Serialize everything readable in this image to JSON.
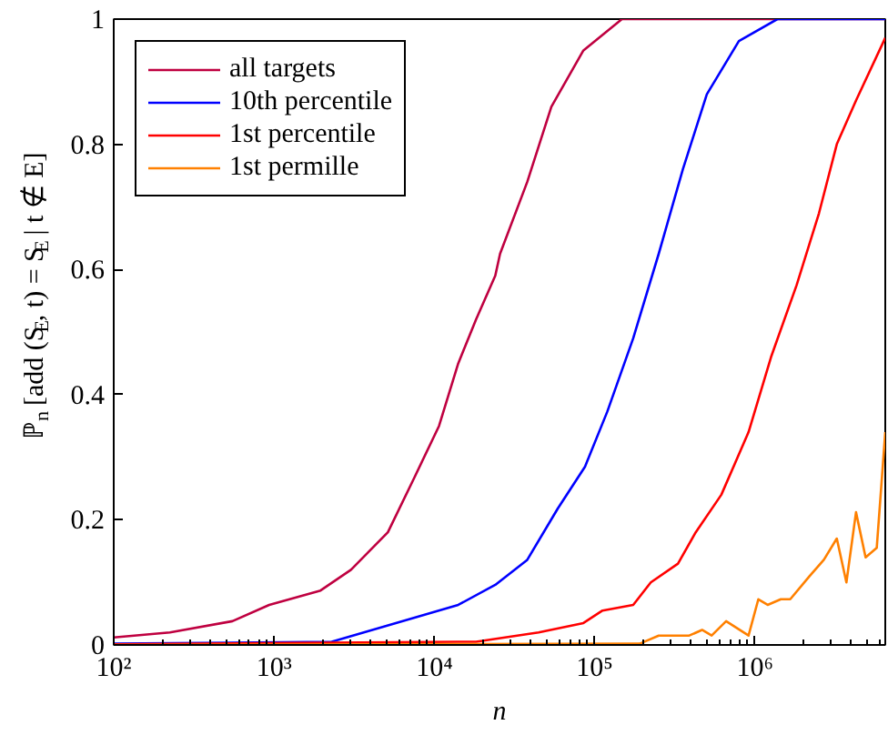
{
  "chart_data": {
    "type": "line",
    "xlabel": "n",
    "ylabel": "ℙ$_{n}$ [add (S$_{E}$, t) = S$_{E}$ | t ∉ E]",
    "log": "x",
    "xlim": [
      100,
      6500000
    ],
    "ylim": [
      0,
      1
    ],
    "xticks": [
      {
        "value": 100,
        "label": "10²"
      },
      {
        "value": 1000,
        "label": "10³"
      },
      {
        "value": 10000,
        "label": "10⁴"
      },
      {
        "value": 100000,
        "label": "10⁵"
      },
      {
        "value": 1000000,
        "label": "10⁶"
      }
    ],
    "yticks": [
      0,
      0.2,
      0.4,
      0.6,
      0.8,
      1
    ],
    "grid": false,
    "legend": "top left",
    "series": [
      {
        "name": "all targets",
        "color": "#bf0040",
        "x": [
          100,
          224,
          550,
          933,
          1950,
          3020,
          5130,
          7590,
          10700,
          14100,
          18200,
          24000,
          25700,
          38000,
          53700,
          85100,
          148000,
          6500000
        ],
        "values": [
          0.012,
          0.02,
          0.038,
          0.064,
          0.087,
          0.12,
          0.18,
          0.27,
          0.35,
          0.45,
          0.52,
          0.59,
          0.625,
          0.74,
          0.86,
          0.95,
          1.0,
          1.0
        ]
      },
      {
        "name": "10th percentile",
        "color": "#0000ff",
        "x": [
          100,
          2290,
          5750,
          14100,
          24000,
          38000,
          58900,
          87100,
          120000,
          174000,
          251000,
          355000,
          501000,
          794000,
          1380000,
          6500000
        ],
        "values": [
          0.002,
          0.005,
          0.035,
          0.064,
          0.096,
          0.136,
          0.218,
          0.285,
          0.373,
          0.49,
          0.625,
          0.76,
          0.88,
          0.965,
          1.0,
          1.0
        ]
      },
      {
        "name": "1st percentile",
        "color": "#ff0000",
        "x": [
          100,
          14100,
          18200,
          44700,
          85100,
          112000,
          174000,
          224000,
          331000,
          427000,
          617000,
          912000,
          1260000,
          1820000,
          2510000,
          3240000,
          4270000,
          6500000
        ],
        "values": [
          0.001,
          0.005,
          0.005,
          0.02,
          0.035,
          0.055,
          0.064,
          0.1,
          0.13,
          0.18,
          0.24,
          0.34,
          0.46,
          0.575,
          0.69,
          0.8,
          0.87,
          0.97
        ]
      },
      {
        "name": "1st permille",
        "color": "#ff8000",
        "x": [
          100,
          191000,
          251000,
          389000,
          468000,
          537000,
          661000,
          912000,
          1050000,
          1200000,
          1450000,
          1660000,
          2190000,
          2690000,
          3240000,
          3720000,
          4270000,
          4900000,
          5750000,
          6500000
        ],
        "values": [
          0.0,
          0.002,
          0.015,
          0.015,
          0.024,
          0.015,
          0.038,
          0.015,
          0.073,
          0.064,
          0.073,
          0.073,
          0.11,
          0.136,
          0.17,
          0.1,
          0.212,
          0.14,
          0.155,
          0.34
        ]
      }
    ]
  }
}
